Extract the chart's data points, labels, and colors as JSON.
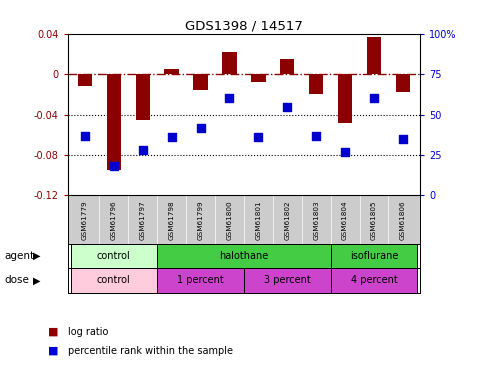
{
  "title": "GDS1398 / 14517",
  "samples": [
    "GSM61779",
    "GSM61796",
    "GSM61797",
    "GSM61798",
    "GSM61799",
    "GSM61800",
    "GSM61801",
    "GSM61802",
    "GSM61803",
    "GSM61804",
    "GSM61805",
    "GSM61806"
  ],
  "log_ratio": [
    -0.012,
    -0.095,
    -0.045,
    0.005,
    -0.016,
    0.022,
    -0.008,
    0.015,
    -0.02,
    -0.048,
    0.037,
    -0.018
  ],
  "pct_rank": [
    37,
    18,
    28,
    36,
    42,
    60,
    36,
    55,
    37,
    27,
    60,
    35
  ],
  "bar_color": "#8B0000",
  "dot_color": "#0000CD",
  "ylim_left": [
    -0.12,
    0.04
  ],
  "ylim_right": [
    0,
    100
  ],
  "yticks_left": [
    -0.12,
    -0.08,
    -0.04,
    0,
    0.04
  ],
  "yticks_right": [
    0,
    25,
    50,
    75,
    100
  ],
  "ytick_labels_right": [
    "0",
    "25",
    "50",
    "75",
    "100%"
  ],
  "dotted_lines": [
    -0.04,
    -0.08
  ],
  "agent_groups": [
    {
      "label": "control",
      "start": 0,
      "end": 3,
      "color": "#CCFFCC"
    },
    {
      "label": "halothane",
      "start": 3,
      "end": 9,
      "color": "#44CC44"
    },
    {
      "label": "isoflurane",
      "start": 9,
      "end": 12,
      "color": "#44CC44"
    }
  ],
  "dose_groups": [
    {
      "label": "control",
      "start": 0,
      "end": 3,
      "color": "#FFCCDD"
    },
    {
      "label": "1 percent",
      "start": 3,
      "end": 6,
      "color": "#CC44CC"
    },
    {
      "label": "3 percent",
      "start": 6,
      "end": 9,
      "color": "#CC44CC"
    },
    {
      "label": "4 percent",
      "start": 9,
      "end": 12,
      "color": "#CC44CC"
    }
  ],
  "legend_items": [
    {
      "label": "log ratio",
      "color": "#8B0000"
    },
    {
      "label": "percentile rank within the sample",
      "color": "#0000CD"
    }
  ],
  "agent_label": "agent",
  "dose_label": "dose",
  "left_yaxis_color": "#8B0000",
  "right_yaxis_color": "#0000CD",
  "bar_width": 0.5,
  "dot_size": 35
}
